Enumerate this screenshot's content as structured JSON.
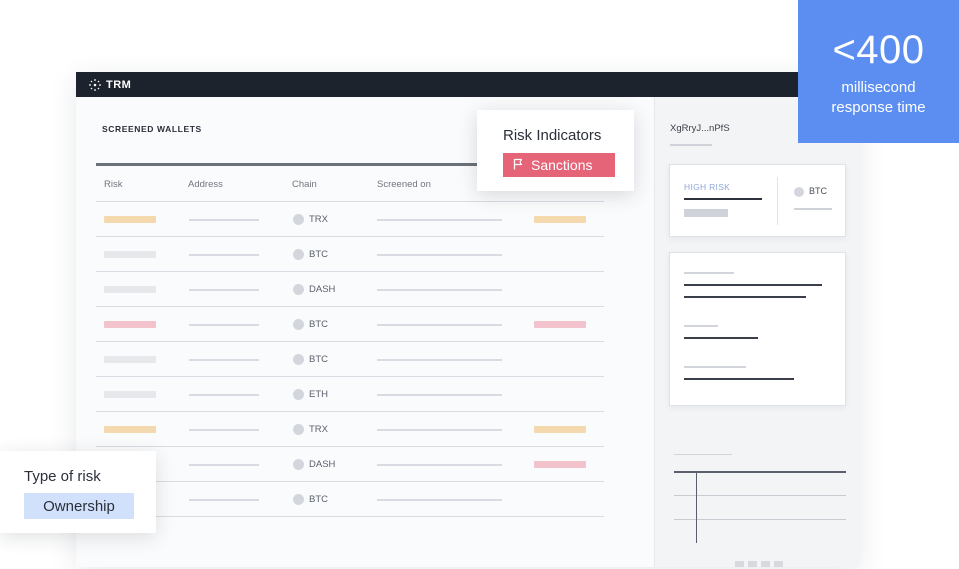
{
  "app": {
    "logo_text": "TRM"
  },
  "table": {
    "title": "SCREENED WALLETS",
    "columns": [
      "Risk",
      "Address",
      "Chain",
      "Screened on"
    ],
    "rows": [
      {
        "chain": "TRX",
        "risk_color": "#f4d9ae",
        "flag_color": "#f4d9ae"
      },
      {
        "chain": "BTC",
        "risk_color": "#e6e8ec",
        "flag_color": ""
      },
      {
        "chain": "DASH",
        "risk_color": "#e6e8ec",
        "flag_color": ""
      },
      {
        "chain": "BTC",
        "risk_color": "#f2c3cd",
        "flag_color": "#f2c3cd"
      },
      {
        "chain": "BTC",
        "risk_color": "#e6e8ec",
        "flag_color": ""
      },
      {
        "chain": "ETH",
        "risk_color": "#e6e8ec",
        "flag_color": ""
      },
      {
        "chain": "TRX",
        "risk_color": "#f4d9ae",
        "flag_color": "#f4d9ae"
      },
      {
        "chain": "DASH",
        "risk_color": "#e6e8ec",
        "flag_color": "#f2c3cd"
      },
      {
        "chain": "BTC",
        "risk_color": "#e6e8ec",
        "flag_color": ""
      }
    ]
  },
  "side": {
    "wallet_id": "XgRryJ...nPfS",
    "risk_level": "HIGH RISK",
    "chain": "BTC"
  },
  "risk_indicators": {
    "title": "Risk Indicators",
    "tag": "Sanctions",
    "tag_color": "#e56478"
  },
  "type_of_risk": {
    "title": "Type of risk",
    "value": "Ownership",
    "value_bg": "#d2e1fb"
  },
  "stat": {
    "value": "<400",
    "line1": "millisecond",
    "line2": "response time",
    "bg": "#5b8ef0"
  }
}
